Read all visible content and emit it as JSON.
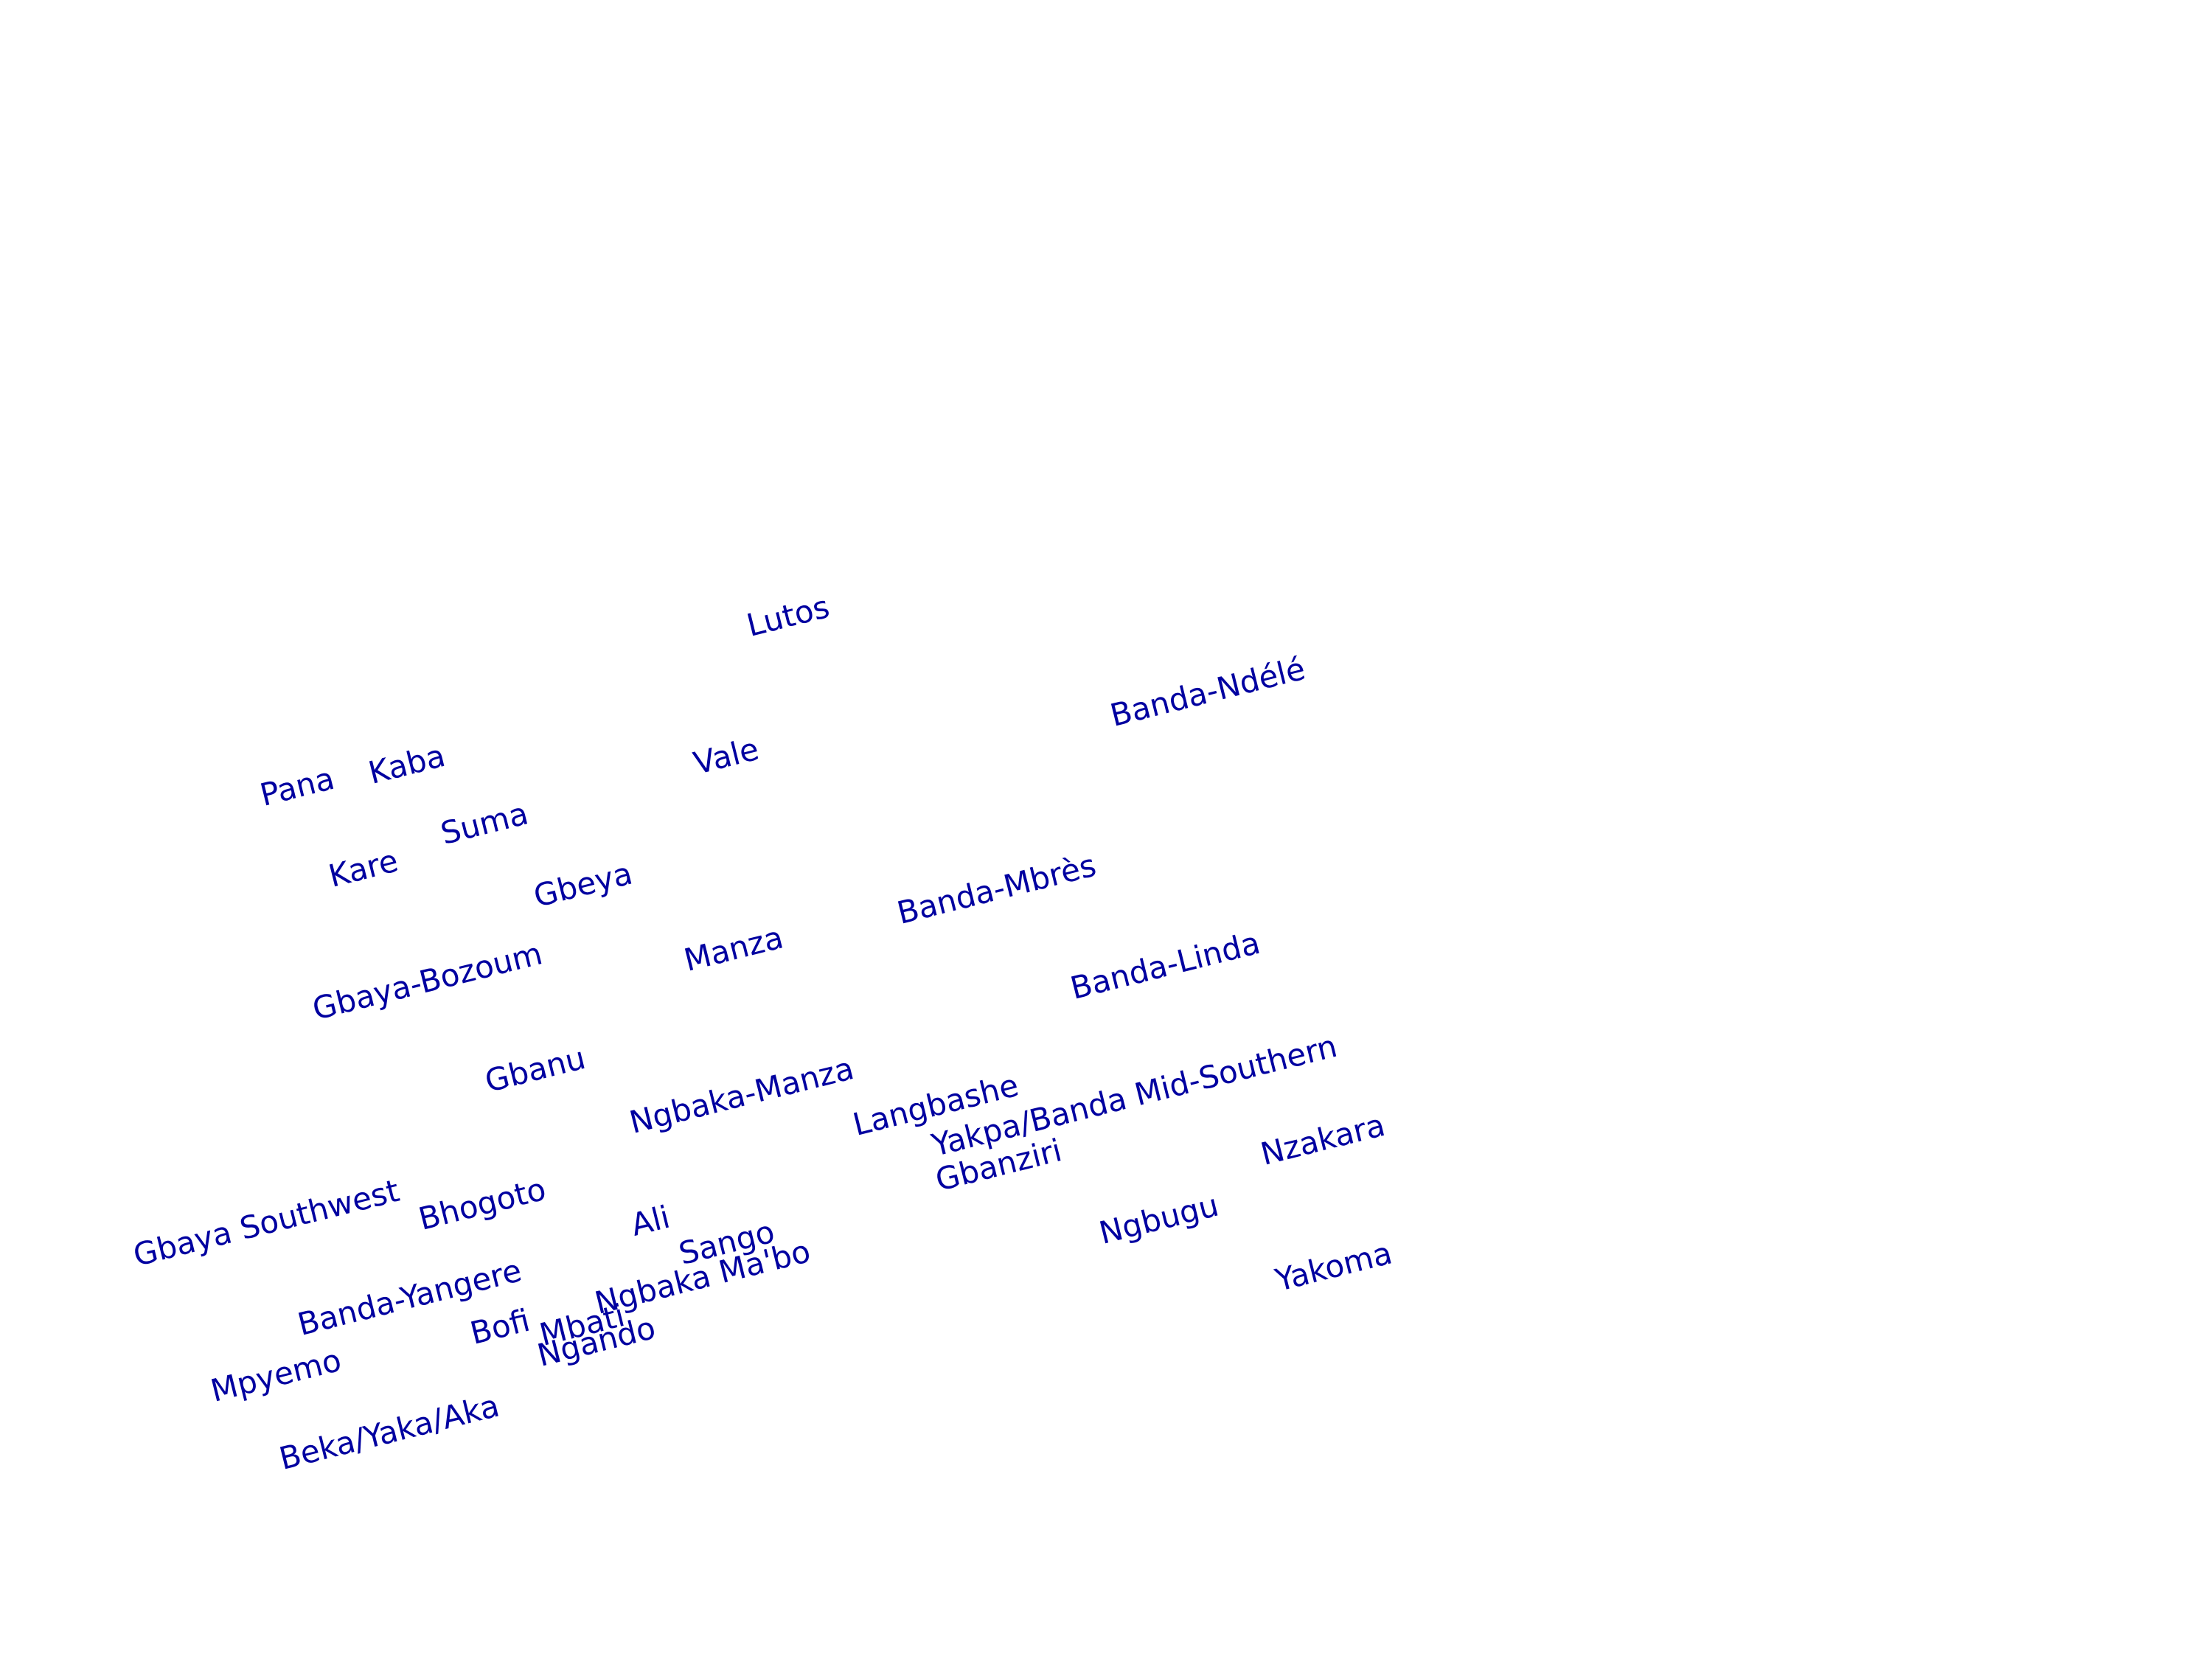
{
  "map": {
    "label_color": "#0000a0",
    "labels": [
      {
        "id": "lutos",
        "text": "Lutos"
      },
      {
        "id": "banda-ndele",
        "text": "Banda-Ndélé"
      },
      {
        "id": "pana",
        "text": "Pana"
      },
      {
        "id": "kaba",
        "text": "Kaba"
      },
      {
        "id": "vale",
        "text": "Vale"
      },
      {
        "id": "suma",
        "text": "Suma"
      },
      {
        "id": "kare",
        "text": "Kare"
      },
      {
        "id": "gbeya",
        "text": "Gbeya"
      },
      {
        "id": "banda-mbres",
        "text": "Banda-Mbrès"
      },
      {
        "id": "manza",
        "text": "Manza"
      },
      {
        "id": "banda-linda",
        "text": "Banda-Linda"
      },
      {
        "id": "gbaya-bozoum",
        "text": "Gbaya-Bozoum"
      },
      {
        "id": "gbanu",
        "text": "Gbanu"
      },
      {
        "id": "ngbaka-manza",
        "text": "Ngbaka-Manza"
      },
      {
        "id": "langbashe",
        "text": "Langbashe"
      },
      {
        "id": "yakpa-banda",
        "text": "Yakpa/Banda Mid-Southern"
      },
      {
        "id": "gbanziri",
        "text": "Gbanziri"
      },
      {
        "id": "nzakara",
        "text": "Nzakara"
      },
      {
        "id": "gbaya-southwest",
        "text": "Gbaya Southwest"
      },
      {
        "id": "bhogoto",
        "text": "Bhogoto"
      },
      {
        "id": "ali",
        "text": "Ali"
      },
      {
        "id": "ngbugu",
        "text": "Ngbugu"
      },
      {
        "id": "sango",
        "text": "Sango"
      },
      {
        "id": "yakoma",
        "text": "Yakoma"
      },
      {
        "id": "ngbaka-mabo",
        "text": "Ngbaka Ma'bo"
      },
      {
        "id": "banda-yangere",
        "text": "Banda-Yangere"
      },
      {
        "id": "bofi",
        "text": "Bofi"
      },
      {
        "id": "mbati",
        "text": "Mbati"
      },
      {
        "id": "ngando",
        "text": "Ngando"
      },
      {
        "id": "mpyemo",
        "text": "Mpyemo"
      },
      {
        "id": "beka-yaka-aka",
        "text": "Beka/Yaka/Aka"
      }
    ]
  }
}
